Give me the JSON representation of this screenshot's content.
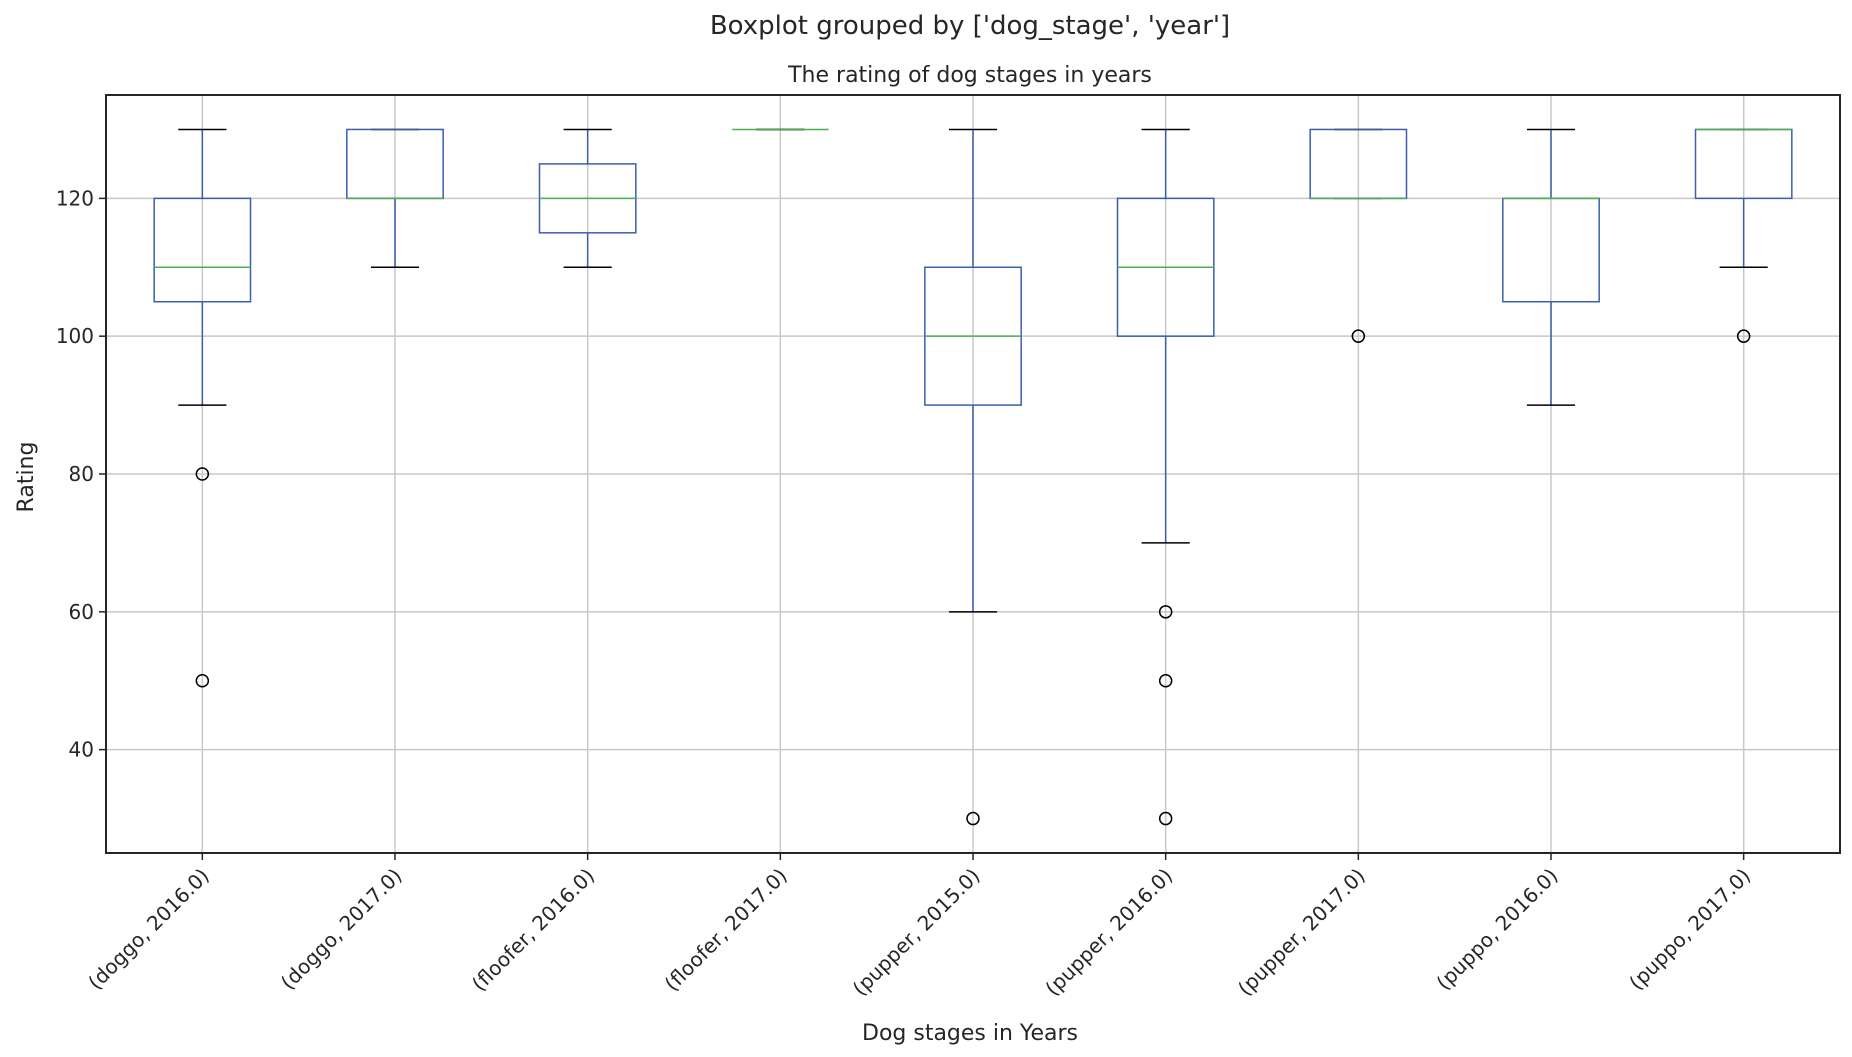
{
  "chart_data": {
    "type": "boxplot",
    "suptitle": "Boxplot grouped by ['dog_stage', 'year']",
    "title": "The rating of dog stages in years",
    "xlabel": "Dog stages in Years",
    "ylabel": "Rating",
    "ylim": [
      25,
      135
    ],
    "yticks": [
      40,
      60,
      80,
      100,
      120
    ],
    "grid": true,
    "categories": [
      "(doggo, 2016.0)",
      "(doggo, 2017.0)",
      "(floofer, 2016.0)",
      "(floofer, 2017.0)",
      "(pupper, 2015.0)",
      "(pupper, 2016.0)",
      "(pupper, 2017.0)",
      "(puppo, 2016.0)",
      "(puppo, 2017.0)"
    ],
    "boxes": [
      {
        "whisker_low": 90,
        "q1": 105,
        "median": 110,
        "q3": 120,
        "whisker_high": 130,
        "outliers": [
          80,
          50
        ]
      },
      {
        "whisker_low": 110,
        "q1": 120,
        "median": 120,
        "q3": 130,
        "whisker_high": 130,
        "outliers": []
      },
      {
        "whisker_low": 110,
        "q1": 115,
        "median": 120,
        "q3": 125,
        "whisker_high": 130,
        "outliers": []
      },
      {
        "whisker_low": 130,
        "q1": 130,
        "median": 130,
        "q3": 130,
        "whisker_high": 130,
        "outliers": []
      },
      {
        "whisker_low": 60,
        "q1": 90,
        "median": 100,
        "q3": 110,
        "whisker_high": 130,
        "outliers": [
          30
        ]
      },
      {
        "whisker_low": 70,
        "q1": 100,
        "median": 110,
        "q3": 120,
        "whisker_high": 130,
        "outliers": [
          60,
          50,
          30
        ]
      },
      {
        "whisker_low": 120,
        "q1": 120,
        "median": 120,
        "q3": 130,
        "whisker_high": 130,
        "outliers": [
          100
        ]
      },
      {
        "whisker_low": 90,
        "q1": 105,
        "median": 120,
        "q3": 120,
        "whisker_high": 130,
        "outliers": []
      },
      {
        "whisker_low": 110,
        "q1": 120,
        "median": 130,
        "q3": 130,
        "whisker_high": 130,
        "outliers": [
          100
        ]
      }
    ],
    "colors": {
      "box": "#3a5fae",
      "median": "#4caf50",
      "cap": "#000000",
      "grid": "#c8c8c8",
      "frame": "#262626"
    }
  }
}
